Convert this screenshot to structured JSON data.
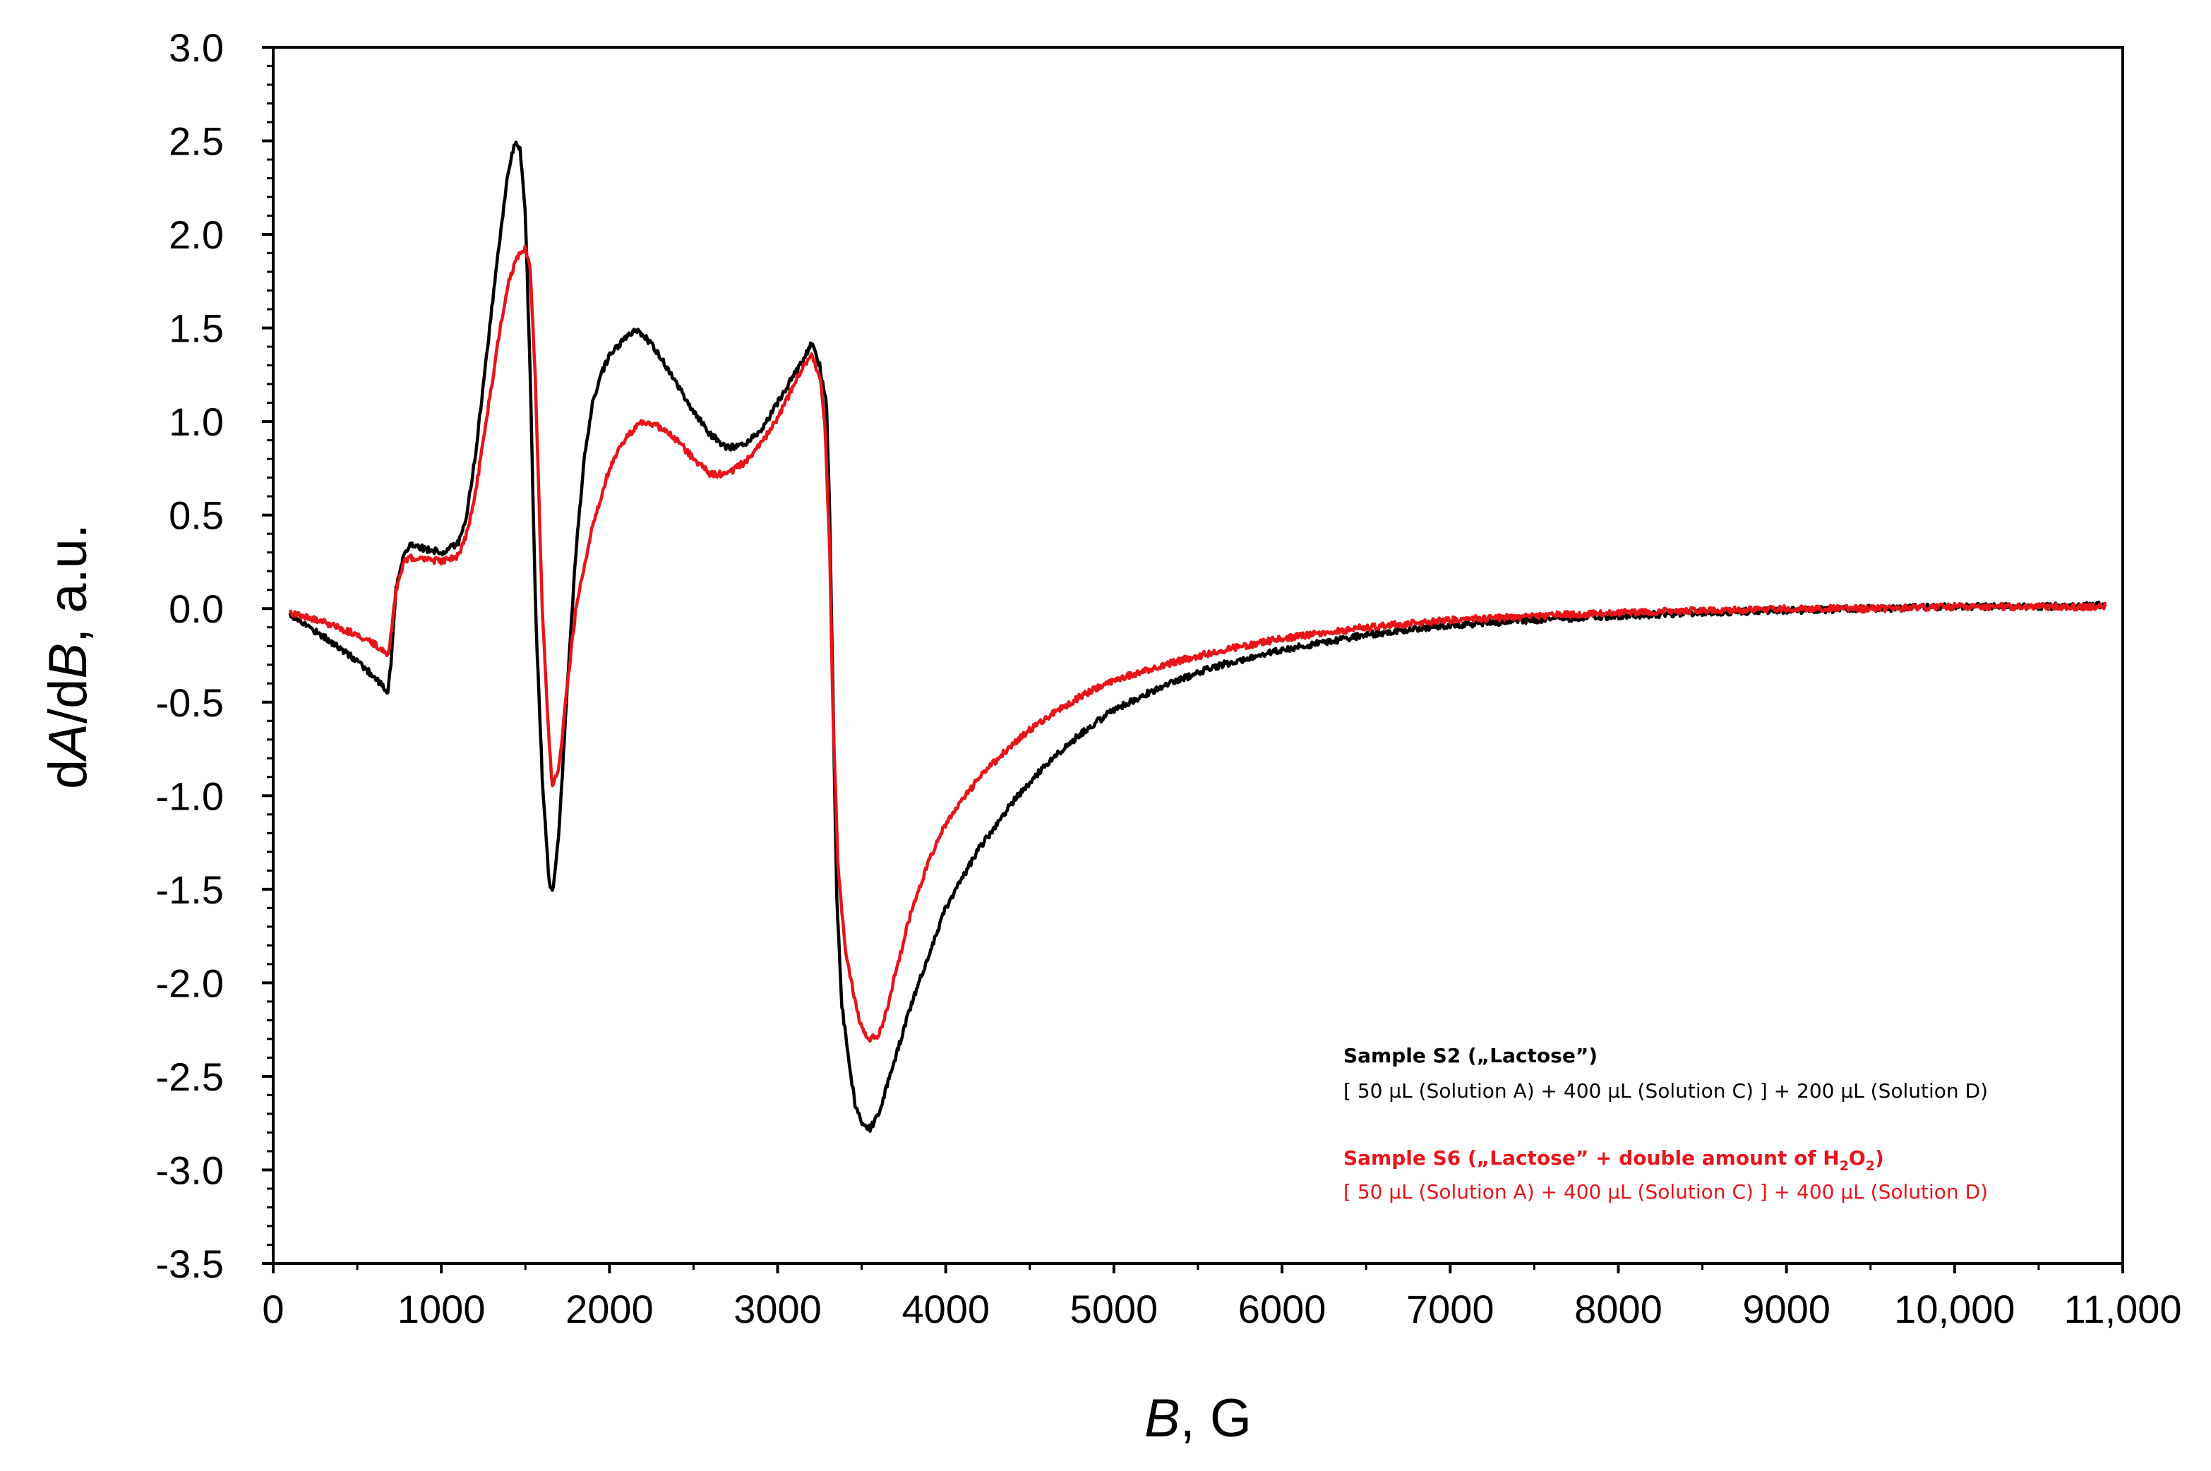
{
  "chart_data": {
    "type": "line",
    "title": "",
    "xlabel": {
      "italic": "B",
      "rest": ", G"
    },
    "ylabel": {
      "d1": "d",
      "a": "A",
      "slash": "/d",
      "b": "B",
      "rest": ", a.u."
    },
    "xlim": [
      0,
      11000
    ],
    "ylim": [
      -3.5,
      3.0
    ],
    "x_ticks": [
      0,
      1000,
      2000,
      3000,
      4000,
      5000,
      6000,
      7000,
      8000,
      9000,
      10000,
      11000
    ],
    "x_tick_labels": [
      "0",
      "1000",
      "2000",
      "3000",
      "4000",
      "5000",
      "6000",
      "7000",
      "8000",
      "9000",
      "10,000",
      "11,000"
    ],
    "y_ticks": [
      3.0,
      2.5,
      2.0,
      1.5,
      1.0,
      0.5,
      0.0,
      -0.5,
      -1.0,
      -1.5,
      -2.0,
      -2.5,
      -3.0,
      -3.5
    ],
    "y_tick_labels": [
      "3.0",
      "2.5",
      "2.0",
      "1.5",
      "1.0",
      "0.5",
      "0.0",
      "-0.5",
      "-1.0",
      "-1.5",
      "-2.0",
      "-2.5",
      "-3.0",
      "-3.5"
    ],
    "legend_position": "bottom-right",
    "series": [
      {
        "name": "Sample S2 („Lactose”)",
        "description": "[ 50 μL (Solution A) + 400 μL (Solution C) ] + 200 μL (Solution D)",
        "color": "#000000",
        "points": [
          [
            100,
            -0.03
          ],
          [
            300,
            -0.15
          ],
          [
            500,
            -0.28
          ],
          [
            620,
            -0.38
          ],
          [
            680,
            -0.45
          ],
          [
            700,
            -0.3
          ],
          [
            730,
            0.1
          ],
          [
            780,
            0.3
          ],
          [
            820,
            0.35
          ],
          [
            900,
            0.32
          ],
          [
            1000,
            0.3
          ],
          [
            1100,
            0.35
          ],
          [
            1150,
            0.5
          ],
          [
            1200,
            0.8
          ],
          [
            1250,
            1.2
          ],
          [
            1300,
            1.6
          ],
          [
            1350,
            2.0
          ],
          [
            1400,
            2.35
          ],
          [
            1440,
            2.5
          ],
          [
            1470,
            2.45
          ],
          [
            1500,
            2.1
          ],
          [
            1530,
            1.2
          ],
          [
            1560,
            0.0
          ],
          [
            1600,
            -0.9
          ],
          [
            1640,
            -1.45
          ],
          [
            1660,
            -1.52
          ],
          [
            1700,
            -1.2
          ],
          [
            1750,
            -0.4
          ],
          [
            1800,
            0.3
          ],
          [
            1850,
            0.8
          ],
          [
            1900,
            1.1
          ],
          [
            1950,
            1.25
          ],
          [
            2000,
            1.35
          ],
          [
            2100,
            1.45
          ],
          [
            2150,
            1.48
          ],
          [
            2200,
            1.47
          ],
          [
            2300,
            1.35
          ],
          [
            2400,
            1.2
          ],
          [
            2500,
            1.05
          ],
          [
            2600,
            0.93
          ],
          [
            2700,
            0.86
          ],
          [
            2800,
            0.87
          ],
          [
            2900,
            0.95
          ],
          [
            3000,
            1.1
          ],
          [
            3100,
            1.25
          ],
          [
            3150,
            1.32
          ],
          [
            3200,
            1.42
          ],
          [
            3250,
            1.3
          ],
          [
            3290,
            1.1
          ],
          [
            3310,
            0.5
          ],
          [
            3330,
            -0.5
          ],
          [
            3350,
            -1.5
          ],
          [
            3380,
            -2.1
          ],
          [
            3420,
            -2.4
          ],
          [
            3460,
            -2.65
          ],
          [
            3500,
            -2.75
          ],
          [
            3550,
            -2.78
          ],
          [
            3600,
            -2.7
          ],
          [
            3650,
            -2.55
          ],
          [
            3700,
            -2.4
          ],
          [
            3800,
            -2.1
          ],
          [
            3900,
            -1.85
          ],
          [
            4000,
            -1.6
          ],
          [
            4200,
            -1.28
          ],
          [
            4400,
            -1.03
          ],
          [
            4600,
            -0.83
          ],
          [
            4800,
            -0.67
          ],
          [
            5000,
            -0.54
          ],
          [
            5300,
            -0.41
          ],
          [
            5600,
            -0.31
          ],
          [
            6000,
            -0.22
          ],
          [
            6500,
            -0.14
          ],
          [
            7000,
            -0.09
          ],
          [
            7500,
            -0.06
          ],
          [
            8000,
            -0.04
          ],
          [
            8500,
            -0.02
          ],
          [
            9000,
            -0.01
          ],
          [
            9500,
            0.0
          ],
          [
            10000,
            0.01
          ],
          [
            10500,
            0.01
          ],
          [
            10900,
            0.02
          ]
        ]
      },
      {
        "name": "Sample S6 („Lactose” + double amount of H₂O₂)",
        "description": "[ 50 μL (Solution A) + 400 μL (Solution C) ] + 400 μL (Solution D)",
        "color": "#e8141a",
        "points": [
          [
            100,
            -0.02
          ],
          [
            300,
            -0.07
          ],
          [
            500,
            -0.14
          ],
          [
            620,
            -0.2
          ],
          [
            680,
            -0.25
          ],
          [
            700,
            -0.15
          ],
          [
            730,
            0.1
          ],
          [
            780,
            0.25
          ],
          [
            820,
            0.27
          ],
          [
            900,
            0.27
          ],
          [
            1000,
            0.25
          ],
          [
            1100,
            0.28
          ],
          [
            1150,
            0.4
          ],
          [
            1200,
            0.6
          ],
          [
            1250,
            0.9
          ],
          [
            1300,
            1.2
          ],
          [
            1350,
            1.5
          ],
          [
            1400,
            1.75
          ],
          [
            1450,
            1.87
          ],
          [
            1500,
            1.93
          ],
          [
            1530,
            1.8
          ],
          [
            1560,
            1.2
          ],
          [
            1600,
            0.0
          ],
          [
            1640,
            -0.7
          ],
          [
            1660,
            -0.95
          ],
          [
            1700,
            -0.85
          ],
          [
            1750,
            -0.4
          ],
          [
            1800,
            0.0
          ],
          [
            1900,
            0.45
          ],
          [
            2000,
            0.75
          ],
          [
            2100,
            0.92
          ],
          [
            2200,
            1.0
          ],
          [
            2300,
            0.97
          ],
          [
            2400,
            0.9
          ],
          [
            2500,
            0.8
          ],
          [
            2600,
            0.72
          ],
          [
            2700,
            0.72
          ],
          [
            2800,
            0.78
          ],
          [
            2900,
            0.88
          ],
          [
            3000,
            1.02
          ],
          [
            3100,
            1.2
          ],
          [
            3150,
            1.3
          ],
          [
            3200,
            1.35
          ],
          [
            3250,
            1.25
          ],
          [
            3280,
            1.0
          ],
          [
            3310,
            0.3
          ],
          [
            3330,
            -0.6
          ],
          [
            3360,
            -1.4
          ],
          [
            3400,
            -1.8
          ],
          [
            3450,
            -2.05
          ],
          [
            3500,
            -2.25
          ],
          [
            3550,
            -2.3
          ],
          [
            3600,
            -2.28
          ],
          [
            3650,
            -2.15
          ],
          [
            3700,
            -1.95
          ],
          [
            3800,
            -1.6
          ],
          [
            3900,
            -1.35
          ],
          [
            4000,
            -1.15
          ],
          [
            4200,
            -0.9
          ],
          [
            4400,
            -0.72
          ],
          [
            4600,
            -0.58
          ],
          [
            4800,
            -0.47
          ],
          [
            5000,
            -0.38
          ],
          [
            5300,
            -0.3
          ],
          [
            5600,
            -0.23
          ],
          [
            6000,
            -0.16
          ],
          [
            6500,
            -0.1
          ],
          [
            7000,
            -0.06
          ],
          [
            7500,
            -0.04
          ],
          [
            8000,
            -0.02
          ],
          [
            8500,
            -0.01
          ],
          [
            9000,
            0.0
          ],
          [
            9500,
            0.0
          ],
          [
            10000,
            0.01
          ],
          [
            10500,
            0.01
          ],
          [
            10900,
            0.01
          ]
        ]
      }
    ],
    "legend": {
      "s2_title": "Sample S2 („Lactose”)",
      "s2_desc": "[ 50 μL (Solution A) + 400 μL (Solution C) ] + 200 μL (Solution D)",
      "s6_title_a": "Sample S6 („Lactose” + double amount of H",
      "s6_sub1": "2",
      "s6_mid": "O",
      "s6_sub2": "2",
      "s6_close": ")",
      "s6_desc": "[ 50 μL (Solution A) + 400 μL (Solution C) ] + 400 μL (Solution D)"
    }
  }
}
